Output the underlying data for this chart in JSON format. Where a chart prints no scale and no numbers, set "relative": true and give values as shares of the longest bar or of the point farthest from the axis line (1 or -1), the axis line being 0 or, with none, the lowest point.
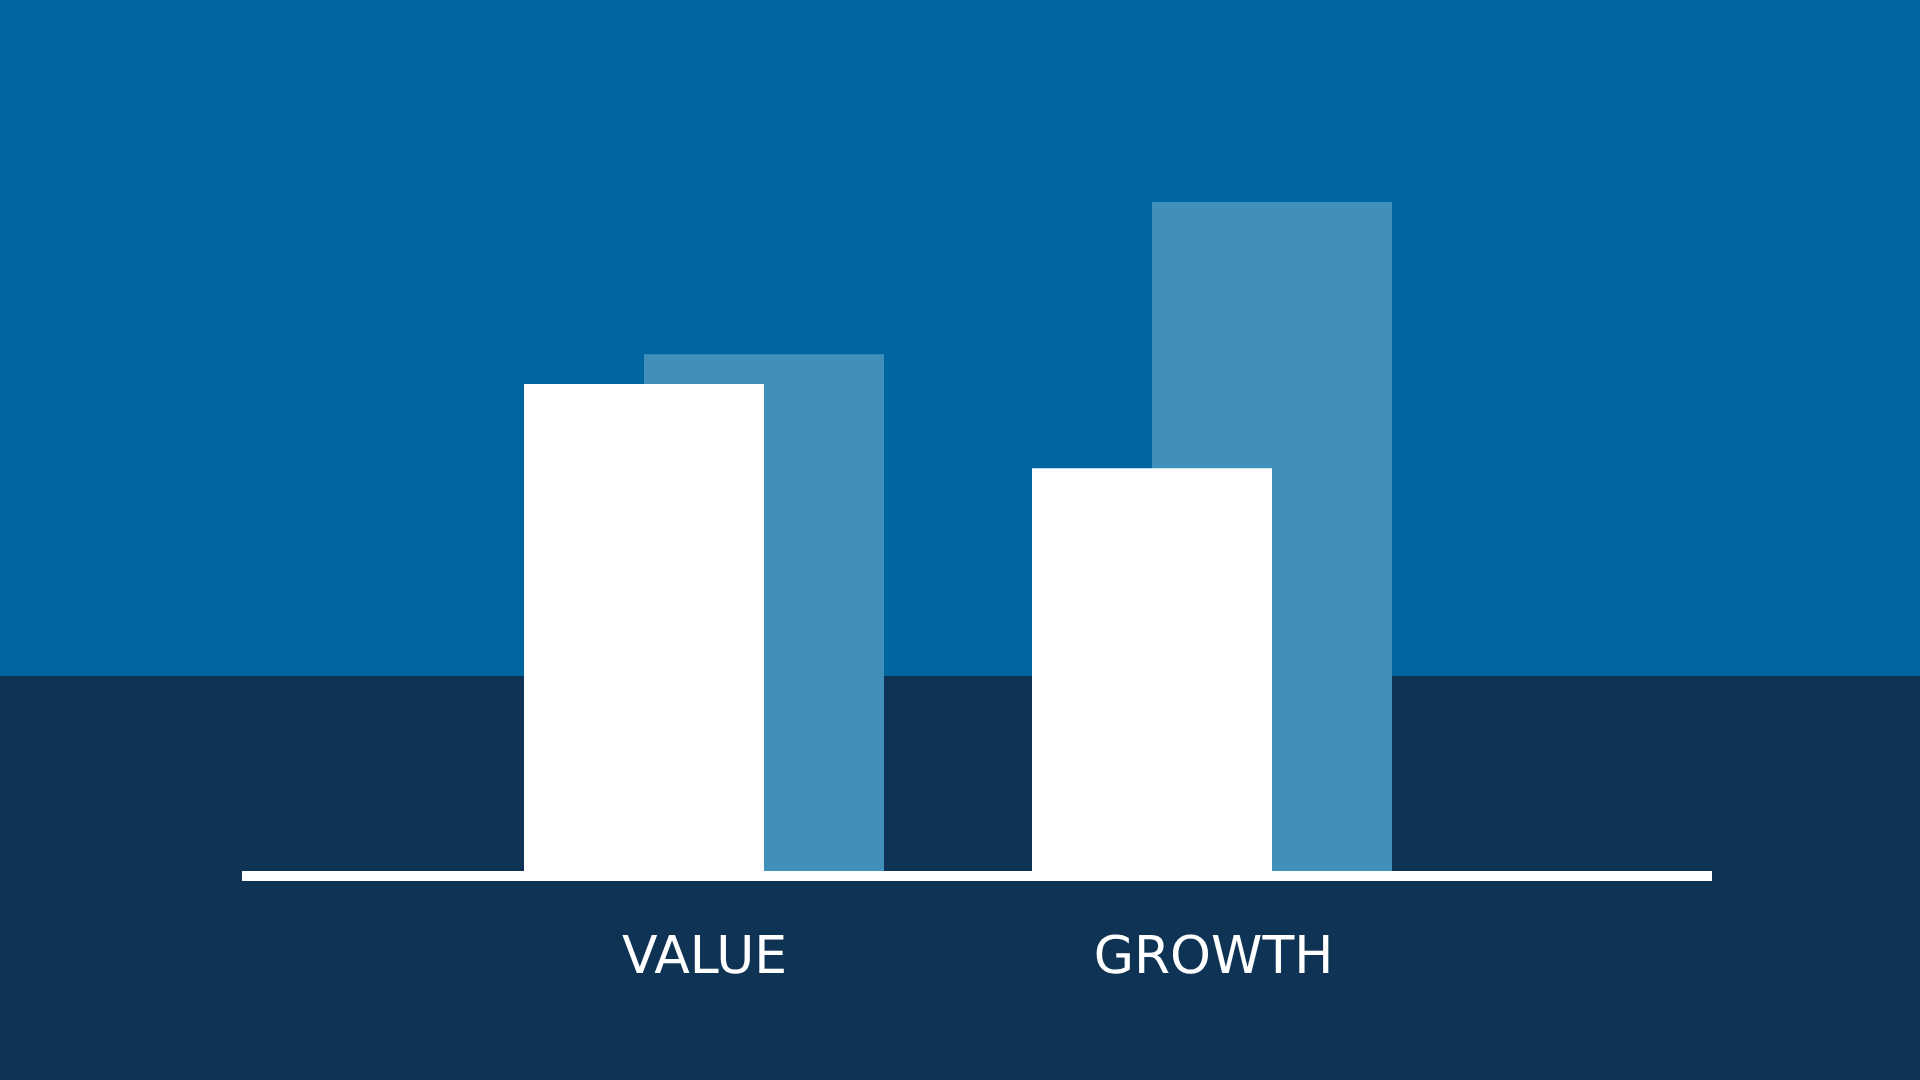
{
  "chart_data": {
    "type": "bar",
    "relative": true,
    "categories": [
      "VALUE",
      "GROWTH"
    ],
    "series": [
      {
        "color": "#ffffff",
        "values": [
          0.73,
          0.605
        ]
      },
      {
        "color": "#4190bb",
        "values": [
          0.774,
          1
        ]
      }
    ],
    "grid": false,
    "legend": false
  }
}
